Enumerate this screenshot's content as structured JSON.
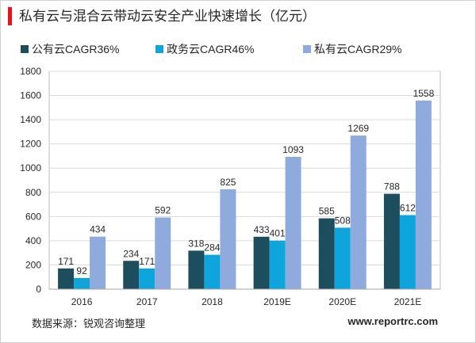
{
  "source": "数据来源：锐观咨询整理",
  "website": "www.reportrc.com",
  "colors": {
    "accent": "#e8141b",
    "gridline": "#d9d9d9",
    "axis": "#a6a6a6"
  },
  "chart_data": {
    "type": "bar",
    "title": "私有云与混合云带动云安全产业快速增长（亿元）",
    "categories": [
      "2016",
      "2017",
      "2018",
      "2019E",
      "2020E",
      "2021E"
    ],
    "series": [
      {
        "name": "公有云CAGR36%",
        "color": "#1d4e5e",
        "values": [
          171,
          234,
          318,
          433,
          585,
          788
        ]
      },
      {
        "name": "政务云CAGR46%",
        "color": "#0ea5dd",
        "values": [
          92,
          171,
          284,
          401,
          508,
          612
        ]
      },
      {
        "name": "私有云CAGR29%",
        "color": "#8faadc",
        "values": [
          434,
          592,
          825,
          1093,
          1269,
          1558
        ]
      }
    ],
    "ylim": [
      0,
      1800
    ],
    "yticks": [
      0,
      200,
      400,
      600,
      800,
      1000,
      1200,
      1400,
      1600,
      1800
    ],
    "grid": true,
    "legend": "top-left",
    "data_labels": true
  }
}
